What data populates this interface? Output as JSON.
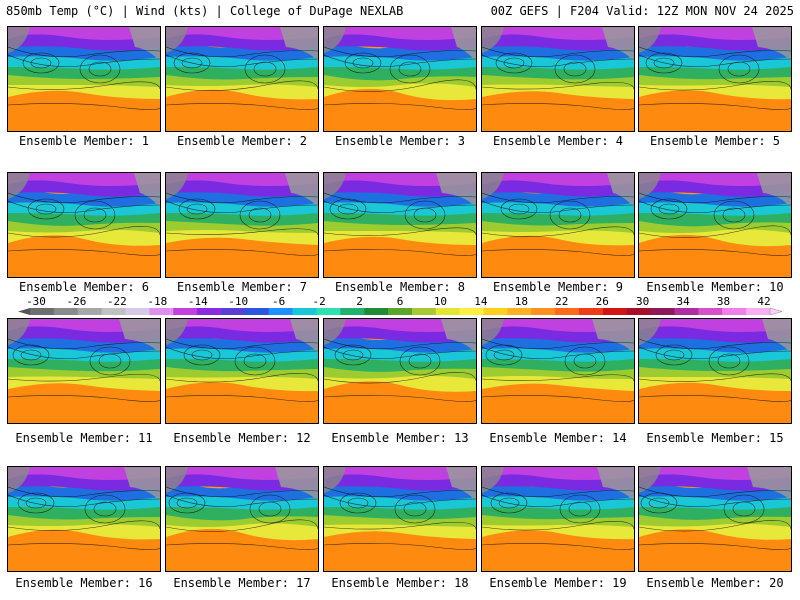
{
  "header": {
    "left": "850mb Temp (°C) | Wind (kts) | College of DuPage NEXLAB",
    "right": "00Z GEFS | F204 Valid: 12Z MON NOV 24 2025"
  },
  "members": [
    "Ensemble Member: 1",
    "Ensemble Member: 2",
    "Ensemble Member: 3",
    "Ensemble Member: 4",
    "Ensemble Member: 5",
    "Ensemble Member: 6",
    "Ensemble Member: 7",
    "Ensemble Member: 8",
    "Ensemble Member: 9",
    "Ensemble Member: 10",
    "Ensemble Member: 11",
    "Ensemble Member: 12",
    "Ensemble Member: 13",
    "Ensemble Member: 14",
    "Ensemble Member: 15",
    "Ensemble Member: 16",
    "Ensemble Member: 17",
    "Ensemble Member: 18",
    "Ensemble Member: 19",
    "Ensemble Member: 20"
  ],
  "colorbar": {
    "labels": [
      "-30",
      "-26",
      "-22",
      "-18",
      "-14",
      "-10",
      "-6",
      "-2",
      "2",
      "6",
      "10",
      "14",
      "18",
      "22",
      "26",
      "30",
      "34",
      "38",
      "42"
    ],
    "colors": [
      "#6e6e6e",
      "#8a8a8a",
      "#a6a6a6",
      "#c0c0c0",
      "#d8c8e8",
      "#e08ff0",
      "#c040e0",
      "#8a2be2",
      "#5a3fd6",
      "#2f55e0",
      "#1e90ff",
      "#19c7d6",
      "#2fe0b0",
      "#20b070",
      "#1f8a3a",
      "#5aa52a",
      "#a8c832",
      "#e6e632",
      "#fff040",
      "#ffd020",
      "#ffb020",
      "#ff9020",
      "#ff6a1a",
      "#f03c14",
      "#d21414",
      "#a80f2a",
      "#8a1a5a",
      "#b02fa0",
      "#d850c8",
      "#f080e8",
      "#f8b0f0"
    ]
  }
}
